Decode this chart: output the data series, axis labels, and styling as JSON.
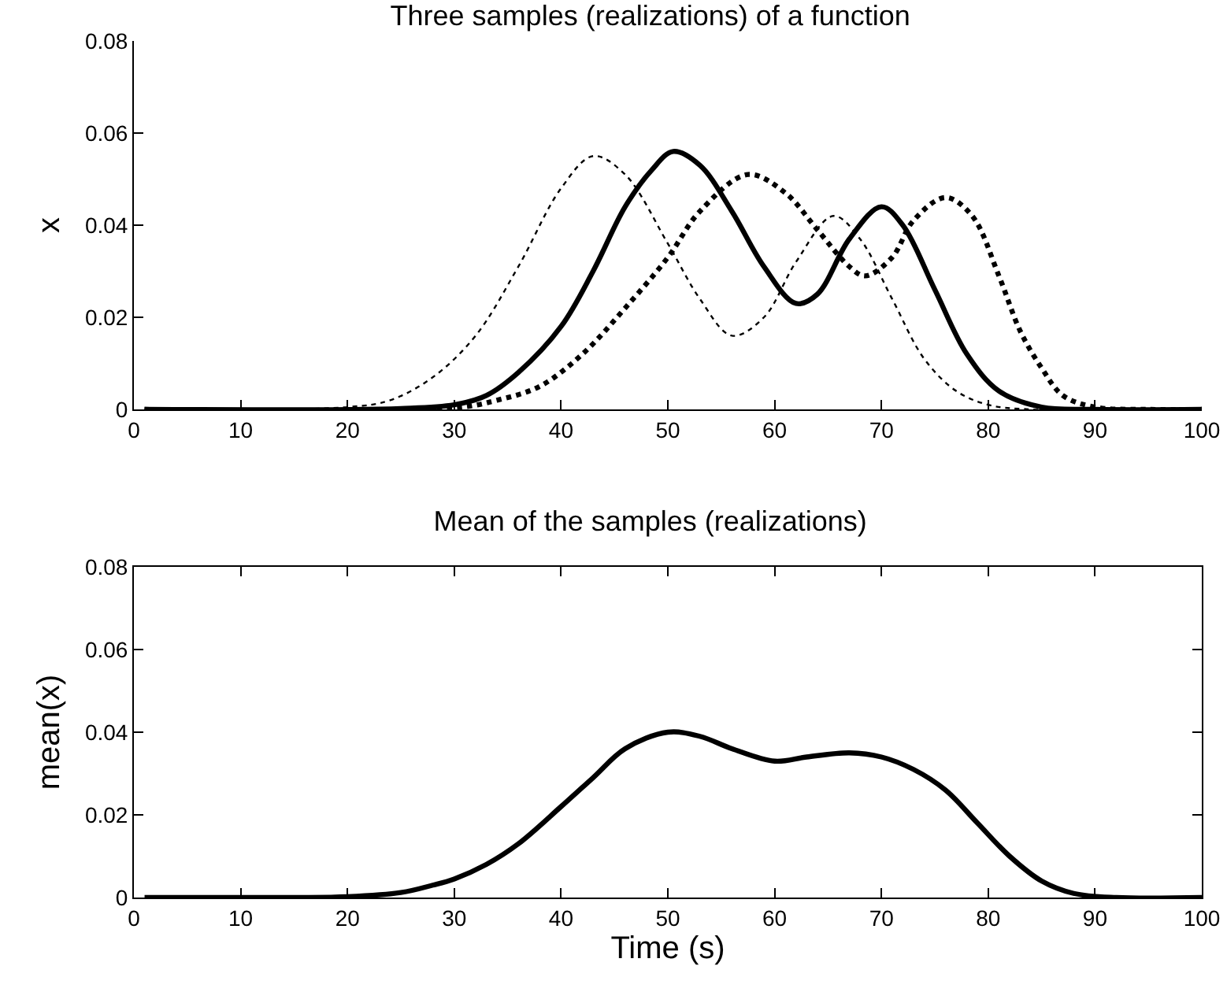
{
  "chart_data": [
    {
      "type": "line",
      "title": "Three samples (realizations) of a function",
      "ylabel": "x",
      "xlim": [
        0,
        100
      ],
      "xticks": [
        0,
        10,
        20,
        30,
        40,
        50,
        60,
        70,
        80,
        90,
        100
      ],
      "ylim": [
        0,
        0.08
      ],
      "yticks": [
        0,
        0.02,
        0.04,
        0.06,
        0.08
      ],
      "grid": false,
      "marker": "none",
      "series": [
        {
          "color": "#000000",
          "line_style": "dotted",
          "x": [
            1,
            20,
            24,
            28,
            32,
            36,
            40,
            43,
            46,
            50,
            53,
            56,
            59,
            62,
            65.5,
            68,
            71,
            74,
            77,
            80,
            84,
            100
          ],
          "values": [
            0,
            0.0005,
            0.002,
            0.007,
            0.016,
            0.031,
            0.048,
            0.055,
            0.051,
            0.036,
            0.024,
            0.016,
            0.02,
            0.032,
            0.042,
            0.037,
            0.024,
            0.011,
            0.004,
            0.001,
            0,
            0
          ]
        },
        {
          "color": "#000000",
          "line_style": "solid",
          "x": [
            1,
            25,
            30,
            33,
            36,
            40,
            43,
            46,
            48.5,
            50.5,
            53,
            56,
            59,
            62,
            64,
            67,
            70,
            72,
            75,
            78,
            81,
            85,
            90,
            100
          ],
          "values": [
            0,
            0.0002,
            0.001,
            0.003,
            0.008,
            0.018,
            0.03,
            0.044,
            0.052,
            0.056,
            0.053,
            0.043,
            0.031,
            0.023,
            0.025,
            0.037,
            0.044,
            0.04,
            0.026,
            0.012,
            0.004,
            0.0005,
            0,
            0
          ]
        },
        {
          "color": "#000000",
          "line_style": "dotted",
          "x": [
            1,
            30,
            34,
            38,
            42,
            46,
            50,
            53,
            57.5,
            61,
            64,
            67,
            68.5,
            71,
            73,
            76,
            78.5,
            81,
            83,
            85,
            87,
            90,
            95,
            100
          ],
          "values": [
            0,
            0.0003,
            0.002,
            0.005,
            0.012,
            0.022,
            0.033,
            0.043,
            0.051,
            0.047,
            0.039,
            0.031,
            0.029,
            0.033,
            0.041,
            0.046,
            0.042,
            0.029,
            0.017,
            0.009,
            0.003,
            0.0005,
            0,
            0
          ]
        }
      ]
    },
    {
      "type": "line",
      "title": "Mean of the samples (realizations)",
      "xlabel": "Time (s)",
      "ylabel": "mean(x)",
      "xlim": [
        0,
        100
      ],
      "xticks": [
        0,
        10,
        20,
        30,
        40,
        50,
        60,
        70,
        80,
        90,
        100
      ],
      "ylim": [
        0,
        0.08
      ],
      "yticks": [
        0,
        0.02,
        0.04,
        0.06,
        0.08
      ],
      "grid": false,
      "marker": "none",
      "series": [
        {
          "color": "#000000",
          "line_style": "solid",
          "x": [
            1,
            15,
            20,
            25,
            28,
            30,
            33,
            36,
            40,
            43,
            46,
            50,
            53,
            56,
            60,
            63,
            67,
            70,
            73,
            76,
            79,
            82,
            85,
            88,
            92,
            100
          ],
          "values": [
            0,
            0,
            0.0002,
            0.0012,
            0.003,
            0.0045,
            0.008,
            0.013,
            0.022,
            0.029,
            0.036,
            0.04,
            0.039,
            0.036,
            0.033,
            0.034,
            0.035,
            0.034,
            0.031,
            0.026,
            0.018,
            0.01,
            0.004,
            0.001,
            0,
            0
          ]
        }
      ]
    }
  ]
}
